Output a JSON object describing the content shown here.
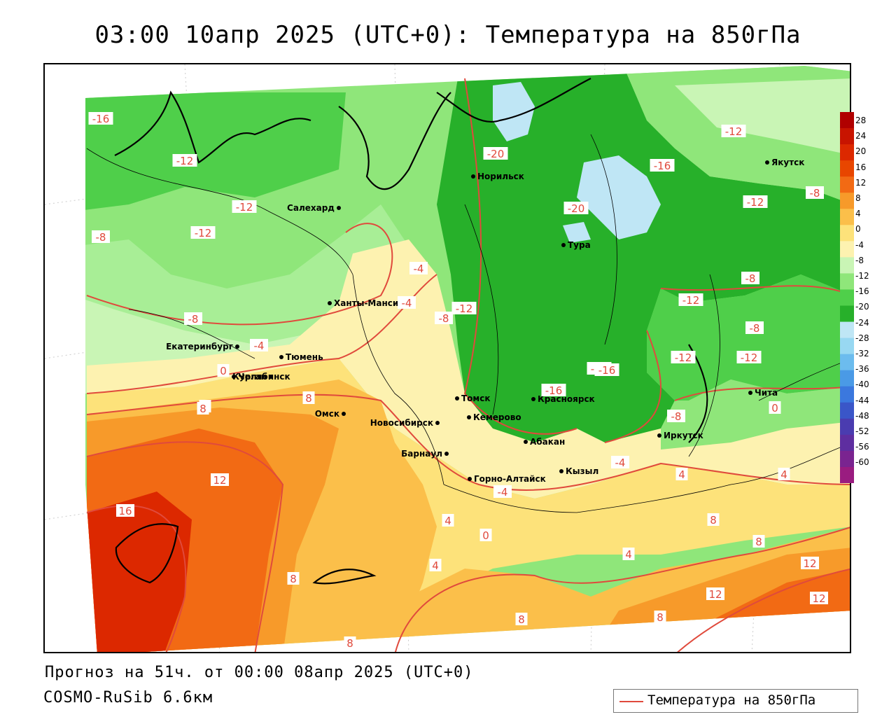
{
  "title": "03:00 10апр 2025 (UTC+0): Температура на 850гПа",
  "footer": {
    "forecast": "Прогноз на 51ч. от 00:00 08апр 2025 (UTC+0)",
    "model": "COSMO-RuSib 6.6км"
  },
  "legend": {
    "label": "Температура на 850гПа",
    "line_color": "#e04a3c"
  },
  "colorbar": {
    "ticks": [
      "28",
      "24",
      "20",
      "16",
      "12",
      "8",
      "4",
      "0",
      "-4",
      "-8",
      "-12",
      "-16",
      "-20",
      "-24",
      "-28",
      "-32",
      "-36",
      "-40",
      "-44",
      "-48",
      "-52",
      "-56",
      "-60"
    ],
    "colors": [
      "#b00000",
      "#c81400",
      "#dc2800",
      "#e84600",
      "#f26a14",
      "#f79a2a",
      "#fbbf4a",
      "#fde27a",
      "#fdf2b0",
      "#c9f5b5",
      "#8fe67a",
      "#4fcf4a",
      "#27b02a",
      "#bfe6f5",
      "#98d8f2",
      "#6cbcee",
      "#4a9ae6",
      "#3b78de",
      "#3a56c8",
      "#4a3cb0",
      "#5e2ea0",
      "#7a2490",
      "#9a1c80"
    ]
  },
  "cities": [
    {
      "name": "Салехард"
    },
    {
      "name": "Норильск"
    },
    {
      "name": "Тура"
    },
    {
      "name": "Якутск"
    },
    {
      "name": "Ханты-Мансийск"
    },
    {
      "name": "Екатеринбург"
    },
    {
      "name": "Тюмень"
    },
    {
      "name": "Челябинск"
    },
    {
      "name": "Курган"
    },
    {
      "name": "Омск"
    },
    {
      "name": "Новосибирск"
    },
    {
      "name": "Томск"
    },
    {
      "name": "Кемерово"
    },
    {
      "name": "Красноярск"
    },
    {
      "name": "Барнаул"
    },
    {
      "name": "Абакан"
    },
    {
      "name": "Горно-Алтайск"
    },
    {
      "name": "Кызыл"
    },
    {
      "name": "Иркутск"
    },
    {
      "name": "Чита"
    }
  ],
  "isotherm_labels": [
    "-16",
    "-12",
    "-12",
    "-12",
    "-8",
    "-8",
    "-4",
    "-4",
    "0",
    "4",
    "8",
    "8",
    "12",
    "16",
    "8",
    "8",
    "-20",
    "-20",
    "-16",
    "-16",
    "-12",
    "-8",
    "-12",
    "-8",
    "-8",
    "-12",
    "-12",
    "-8",
    "-4",
    "0",
    "4",
    "4",
    "8",
    "8",
    "12",
    "12",
    "12",
    "8",
    "4",
    "0",
    "4",
    "8",
    "4",
    "-4",
    "-4",
    "-12",
    "-16",
    "-16",
    "-8",
    "-12"
  ]
}
